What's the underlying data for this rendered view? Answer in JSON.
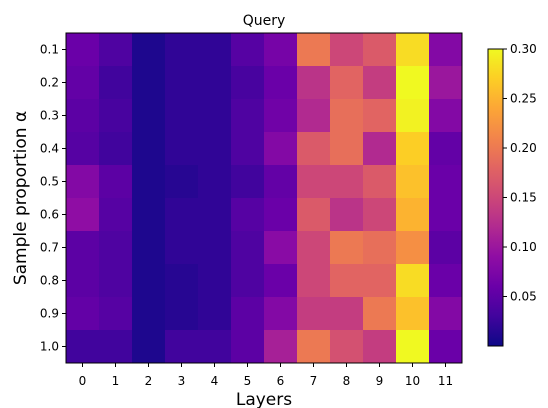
{
  "chart_data": {
    "type": "heatmap",
    "title": "Query",
    "xlabel": "Layers",
    "ylabel": "Sample proportion α",
    "x_categories": [
      "0",
      "1",
      "2",
      "3",
      "4",
      "5",
      "6",
      "7",
      "8",
      "9",
      "10",
      "11"
    ],
    "y_categories": [
      "0.1",
      "0.2",
      "0.3",
      "0.4",
      "0.5",
      "0.6",
      "0.7",
      "0.8",
      "0.9",
      "1.0"
    ],
    "colormap": "plasma",
    "vmin": 0.0,
    "vmax": 0.3,
    "colorbar_ticks": [
      "0.05",
      "0.10",
      "0.15",
      "0.20",
      "0.25",
      "0.30"
    ],
    "colorbar_tick_values": [
      0.05,
      0.1,
      0.15,
      0.2,
      0.25,
      0.3
    ],
    "values": [
      [
        0.06,
        0.04,
        0.01,
        0.02,
        0.02,
        0.045,
        0.07,
        0.2,
        0.15,
        0.17,
        0.28,
        0.08
      ],
      [
        0.055,
        0.03,
        0.01,
        0.02,
        0.02,
        0.035,
        0.06,
        0.13,
        0.18,
        0.14,
        0.3,
        0.1
      ],
      [
        0.05,
        0.035,
        0.01,
        0.02,
        0.02,
        0.04,
        0.065,
        0.12,
        0.19,
        0.18,
        0.295,
        0.08
      ],
      [
        0.045,
        0.03,
        0.01,
        0.02,
        0.02,
        0.04,
        0.08,
        0.17,
        0.19,
        0.12,
        0.27,
        0.055
      ],
      [
        0.08,
        0.05,
        0.01,
        0.015,
        0.02,
        0.03,
        0.055,
        0.15,
        0.15,
        0.17,
        0.26,
        0.06
      ],
      [
        0.09,
        0.045,
        0.01,
        0.02,
        0.02,
        0.045,
        0.06,
        0.17,
        0.13,
        0.15,
        0.25,
        0.06
      ],
      [
        0.05,
        0.04,
        0.01,
        0.02,
        0.02,
        0.04,
        0.085,
        0.15,
        0.2,
        0.19,
        0.22,
        0.05
      ],
      [
        0.05,
        0.04,
        0.01,
        0.015,
        0.02,
        0.04,
        0.06,
        0.15,
        0.18,
        0.18,
        0.28,
        0.06
      ],
      [
        0.055,
        0.045,
        0.01,
        0.015,
        0.02,
        0.05,
        0.08,
        0.14,
        0.14,
        0.2,
        0.26,
        0.08
      ],
      [
        0.03,
        0.03,
        0.01,
        0.03,
        0.03,
        0.05,
        0.11,
        0.2,
        0.16,
        0.14,
        0.3,
        0.06
      ]
    ]
  }
}
